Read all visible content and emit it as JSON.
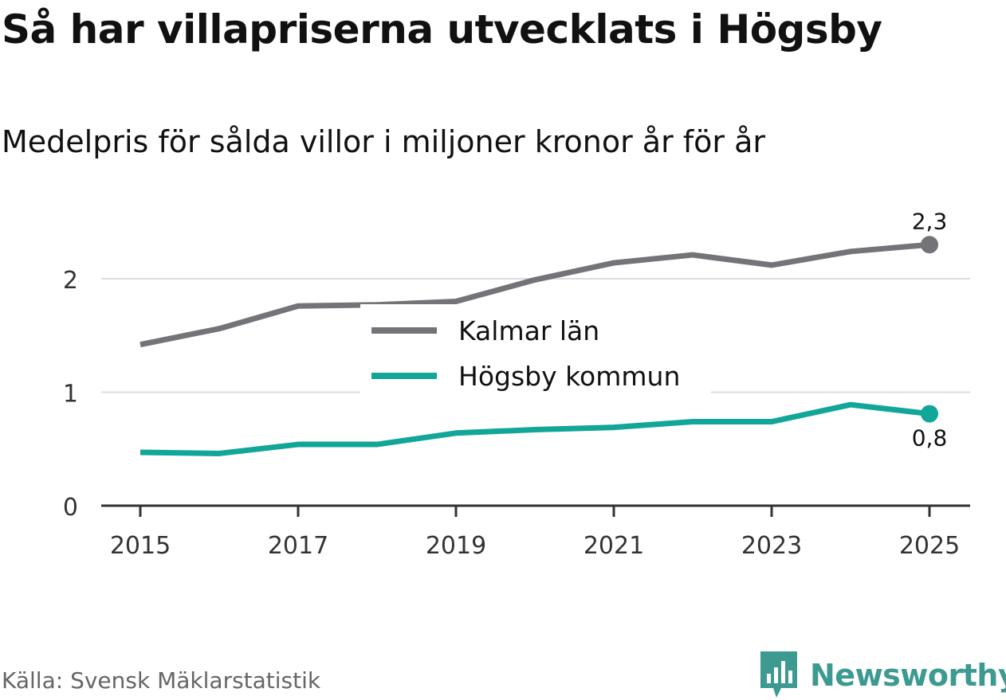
{
  "title": "Så har villapriserna utvecklats i Högsby",
  "subtitle": "Medelpris för sålda villor i miljoner kronor år för år",
  "source": "Källa: Svensk Mäklarstatistik",
  "brand": "Newsworthy",
  "brand_icon": "bar-chart-badge-icon",
  "colors": {
    "kalmar": "#737378",
    "hogsby": "#12a699",
    "grid": "#dddddd",
    "axis": "#333333",
    "brand": "#3d9a90"
  },
  "chart_data": {
    "type": "line",
    "x": [
      2015,
      2016,
      2017,
      2018,
      2019,
      2020,
      2021,
      2022,
      2023,
      2024,
      2025
    ],
    "x_ticks": [
      "2015",
      "2017",
      "2019",
      "2021",
      "2023",
      "2025"
    ],
    "y_ticks": [
      "0",
      "1",
      "2"
    ],
    "ylim": [
      0,
      2.5
    ],
    "grid": true,
    "legend_position": "center",
    "series": [
      {
        "name": "Kalmar län",
        "values": [
          1.42,
          1.56,
          1.76,
          1.77,
          1.8,
          1.99,
          2.14,
          2.21,
          2.12,
          2.24,
          2.3
        ],
        "end_label": "2,3"
      },
      {
        "name": "Högsby kommun",
        "values": [
          0.47,
          0.46,
          0.54,
          0.54,
          0.64,
          0.67,
          0.69,
          0.74,
          0.74,
          0.89,
          0.81
        ],
        "end_label": "0,8"
      }
    ]
  }
}
